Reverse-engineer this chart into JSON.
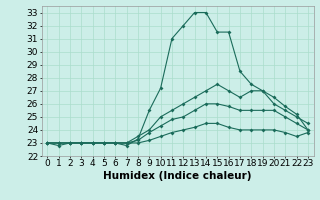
{
  "xlabel": "Humidex (Indice chaleur)",
  "background_color": "#cceee8",
  "grid_color": "#aaddcc",
  "line_color": "#1a6b5a",
  "x": [
    0,
    1,
    2,
    3,
    4,
    5,
    6,
    7,
    8,
    9,
    10,
    11,
    12,
    13,
    14,
    15,
    16,
    17,
    18,
    19,
    20,
    21,
    22,
    23
  ],
  "line1": [
    23,
    22.8,
    23,
    23,
    23,
    23,
    23,
    22.8,
    23.3,
    25.5,
    27.2,
    31.0,
    32.0,
    33.0,
    33.0,
    31.5,
    31.5,
    28.5,
    27.5,
    27.0,
    26.5,
    25.8,
    25.2,
    24.0
  ],
  "line2": [
    23,
    23,
    23,
    23,
    23,
    23,
    23,
    23,
    23.5,
    24.0,
    25.0,
    25.5,
    26.0,
    26.5,
    27.0,
    27.5,
    27.0,
    26.5,
    27.0,
    27.0,
    26.0,
    25.5,
    25.0,
    24.5
  ],
  "line3": [
    23,
    23,
    23,
    23,
    23,
    23,
    23,
    23,
    23.2,
    23.8,
    24.3,
    24.8,
    25.0,
    25.5,
    26.0,
    26.0,
    25.8,
    25.5,
    25.5,
    25.5,
    25.5,
    25.0,
    24.5,
    24.0
  ],
  "line4": [
    23,
    23,
    23,
    23,
    23,
    23,
    23,
    23,
    23.0,
    23.2,
    23.5,
    23.8,
    24.0,
    24.2,
    24.5,
    24.5,
    24.2,
    24.0,
    24.0,
    24.0,
    24.0,
    23.8,
    23.5,
    23.8
  ],
  "xlim": [
    -0.5,
    23.5
  ],
  "ylim": [
    22,
    33.5
  ],
  "yticks": [
    22,
    23,
    24,
    25,
    26,
    27,
    28,
    29,
    30,
    31,
    32,
    33
  ],
  "xticks": [
    0,
    1,
    2,
    3,
    4,
    5,
    6,
    7,
    8,
    9,
    10,
    11,
    12,
    13,
    14,
    15,
    16,
    17,
    18,
    19,
    20,
    21,
    22,
    23
  ],
  "figsize": [
    3.2,
    2.0
  ],
  "dpi": 100,
  "tick_fontsize": 6.5,
  "xlabel_fontsize": 7.5
}
